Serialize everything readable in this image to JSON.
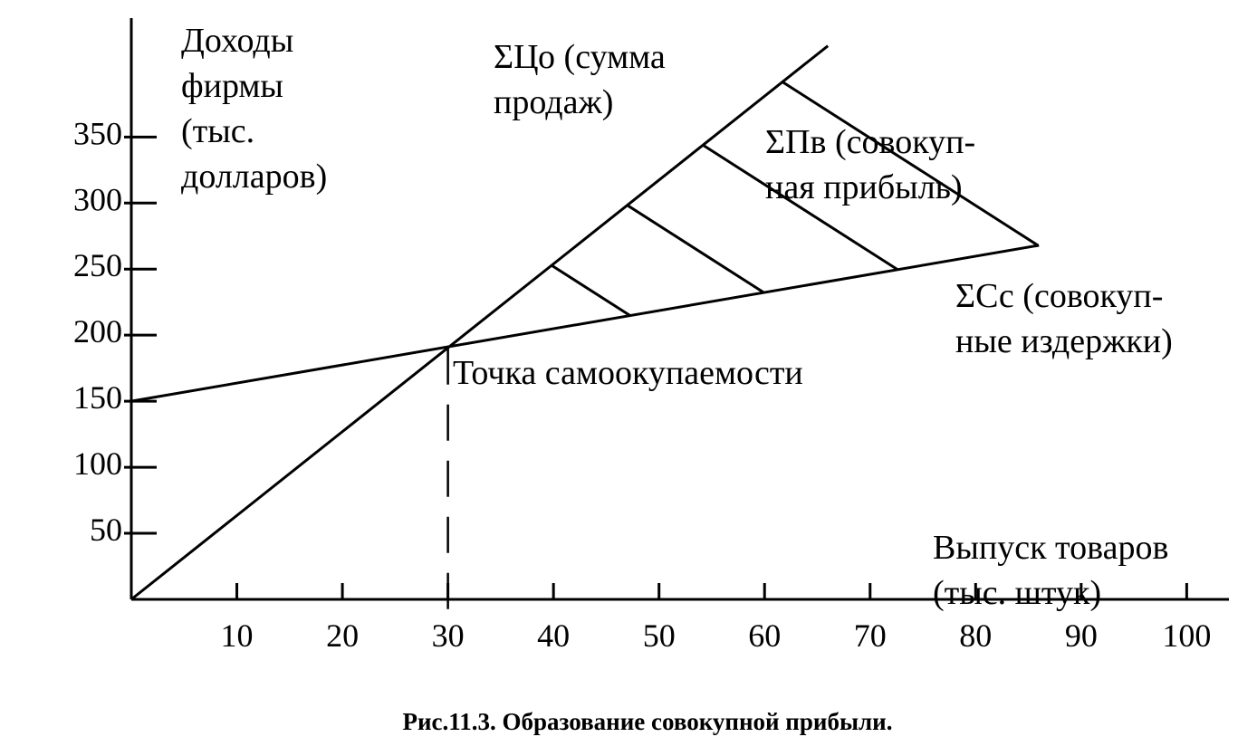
{
  "chart_data": {
    "type": "line",
    "y_label": "Доходы\nфирмы\n(тыс.\nдолларов)",
    "x_label": "Выпуск товаров\n(тыс. штук)",
    "caption": "Рис.11.3. Образование совокупной прибыли.",
    "profit_label": "ΣПв (совокуп-\nная прибыль)",
    "series": [
      {
        "name": "ΣЦо (сумма\nпродаж)",
        "color": "#000000",
        "x": [
          0,
          66
        ],
        "values": [
          0,
          419
        ]
      },
      {
        "name": "ΣСс (совокуп-\nные издержки)",
        "color": "#000000",
        "x": [
          0,
          86
        ],
        "values": [
          150,
          268
        ]
      }
    ],
    "break_even": {
      "x": 30,
      "y": 190,
      "label": "Точка самоокупаемости"
    },
    "xlim": [
      0,
      104
    ],
    "ylim": [
      0,
      440
    ],
    "xticks": [
      10,
      20,
      30,
      40,
      50,
      60,
      70,
      80,
      90,
      100
    ],
    "yticks": [
      50,
      100,
      150,
      200,
      250,
      300,
      350
    ]
  }
}
